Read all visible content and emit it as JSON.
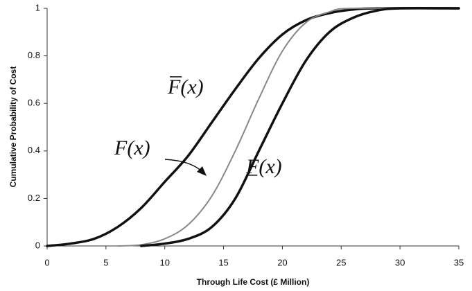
{
  "chart_data": {
    "type": "line",
    "x_label": "Through Life Cost (£ Million)",
    "y_label": "Cumulative Probability of Cost",
    "xlim": [
      0,
      35
    ],
    "xticks": [
      0,
      5,
      10,
      15,
      20,
      25,
      30,
      35
    ],
    "ylim": [
      0,
      1
    ],
    "yticks": [
      0,
      0.2,
      0.4,
      0.6,
      0.8,
      1
    ],
    "grid": false,
    "series": [
      {
        "name": "F(x)",
        "decoration": "overline",
        "color": "#111111",
        "width": 3.5,
        "x": [
          0,
          2,
          4,
          6,
          8,
          10,
          12,
          14,
          16,
          18,
          20,
          22,
          24,
          26,
          28,
          35
        ],
        "values": [
          0,
          0.01,
          0.03,
          0.08,
          0.16,
          0.27,
          0.38,
          0.52,
          0.66,
          0.79,
          0.89,
          0.95,
          0.98,
          0.995,
          1,
          1
        ]
      },
      {
        "name": "F(x)",
        "decoration": "none",
        "color": "#888888",
        "width": 2,
        "x": [
          6,
          8,
          10,
          12,
          14,
          16,
          18,
          20,
          22,
          24,
          26,
          35
        ],
        "values": [
          0,
          0.005,
          0.03,
          0.09,
          0.21,
          0.4,
          0.62,
          0.82,
          0.94,
          0.985,
          1,
          1
        ]
      },
      {
        "name": "F(x)",
        "decoration": "underline",
        "color": "#111111",
        "width": 3.5,
        "x": [
          8,
          10,
          12,
          14,
          16,
          18,
          20,
          22,
          24,
          26,
          28,
          30,
          35
        ],
        "values": [
          0,
          0.01,
          0.03,
          0.08,
          0.2,
          0.4,
          0.6,
          0.78,
          0.9,
          0.96,
          0.99,
          1,
          1
        ]
      }
    ]
  }
}
